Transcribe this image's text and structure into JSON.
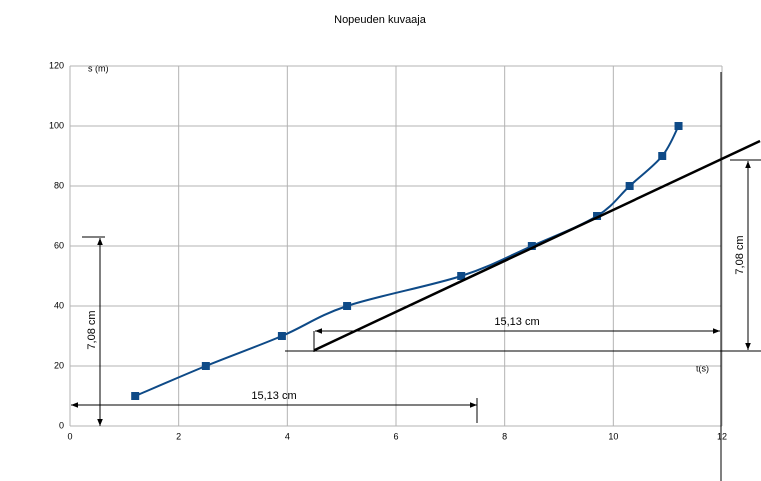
{
  "chart_data": {
    "type": "scatter",
    "title": "Nopeuden kuvaaja",
    "x_label": "t(s)",
    "y_label": "s (m)",
    "series": [
      {
        "name": "s",
        "color": "#0e4a87",
        "smooth": true,
        "markers": true,
        "x": [
          1.2,
          2.5,
          3.9,
          5.1,
          7.2,
          8.5,
          9.7,
          10.3,
          10.9,
          11.2
        ],
        "values": [
          10,
          20,
          30,
          40,
          50,
          60,
          70,
          80,
          90,
          100
        ]
      },
      {
        "name": "tangentti",
        "color": "#000000",
        "smooth": false,
        "markers": false,
        "x": [
          4.5,
          12.7
        ],
        "values": [
          25.3,
          95
        ]
      }
    ],
    "xlim": [
      0,
      12
    ],
    "ylim": [
      0,
      120
    ],
    "xticks": [
      0,
      2,
      4,
      6,
      8,
      10,
      12
    ],
    "yticks": [
      0,
      20,
      40,
      60,
      80,
      100,
      120
    ],
    "grid": true,
    "annotations": [
      "15,13 cm",
      "7,08 cm",
      "15,13 cm",
      "7,08 cm"
    ]
  }
}
